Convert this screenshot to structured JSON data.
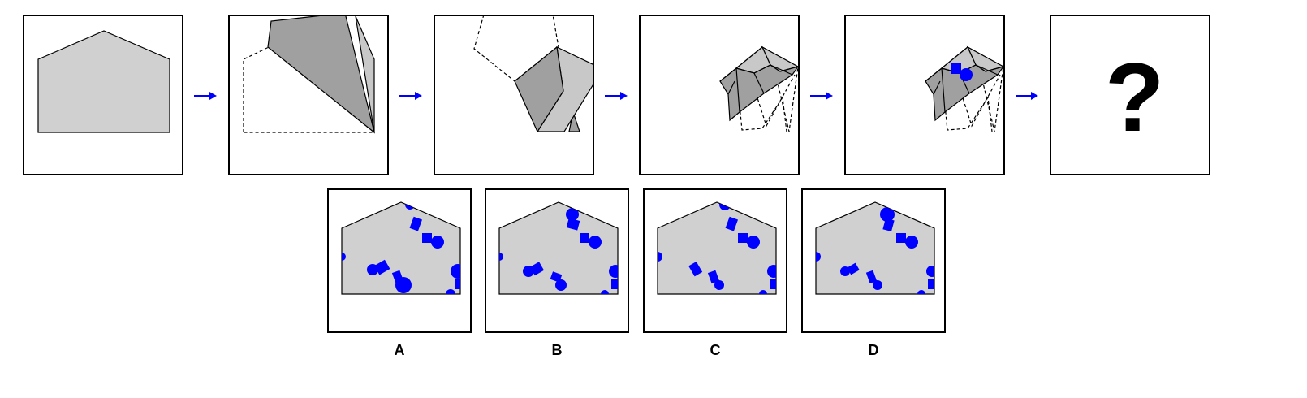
{
  "puzzle": {
    "question_mark": "?",
    "colors": {
      "paper": "#d0d0d0",
      "folded_layer": "#a0a0a0",
      "folded_light": "#c8c8c8",
      "punch": "#0000ff",
      "arrow": "#0000ff",
      "outline": "#000000"
    },
    "steps": [
      {
        "name": "unfolded-paper"
      },
      {
        "name": "first-fold"
      },
      {
        "name": "second-fold"
      },
      {
        "name": "third-fold"
      },
      {
        "name": "punched-holes"
      },
      {
        "name": "result-unknown"
      }
    ],
    "options": [
      {
        "label": "A"
      },
      {
        "label": "B"
      },
      {
        "label": "C"
      },
      {
        "label": "D"
      }
    ]
  }
}
